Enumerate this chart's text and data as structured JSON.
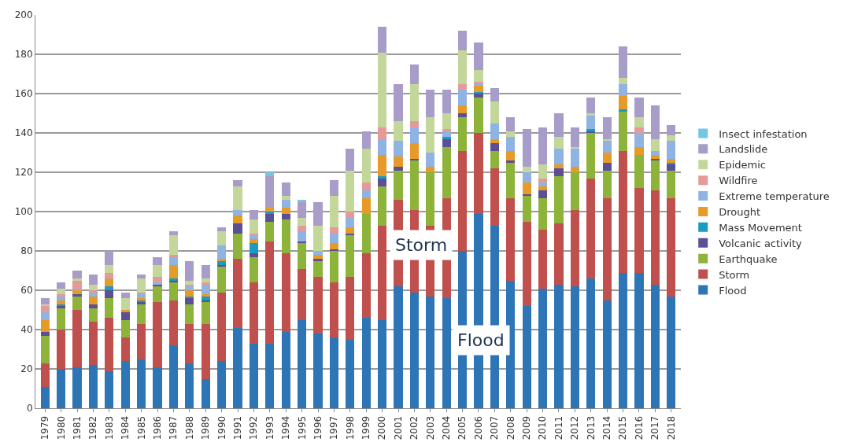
{
  "chart_data": {
    "type": "bar",
    "stacked": true,
    "grid": "y",
    "legend": "right",
    "categories": [
      "1979",
      "1980",
      "1981",
      "1982",
      "1983",
      "1984",
      "1985",
      "1986",
      "1987",
      "1988",
      "1989",
      "1990",
      "1991",
      "1992",
      "1993",
      "1994",
      "1995",
      "1996",
      "1997",
      "1998",
      "1999",
      "2000",
      "2001",
      "2002",
      "2003",
      "2004",
      "2005",
      "2006",
      "2007",
      "2008",
      "2009",
      "2010",
      "2011",
      "2012",
      "2013",
      "2014",
      "2015",
      "2016",
      "2017",
      "2018"
    ],
    "ylim": [
      0,
      200
    ],
    "yticks": [
      0,
      20,
      40,
      60,
      80,
      100,
      120,
      140,
      160,
      180,
      200
    ],
    "series": [
      {
        "name": "Flood",
        "color": "#2e75b6",
        "values": [
          11,
          20,
          21,
          22,
          19,
          24,
          25,
          21,
          32,
          23,
          15,
          24,
          41,
          33,
          33,
          39,
          45,
          38,
          36,
          35,
          46,
          45,
          62,
          59,
          57,
          56,
          80,
          99,
          93,
          65,
          52,
          61,
          63,
          62,
          66,
          55,
          69,
          69,
          63,
          57
        ]
      },
      {
        "name": "Storm",
        "color": "#c0504d",
        "values": [
          12,
          20,
          29,
          22,
          27,
          12,
          18,
          33,
          23,
          20,
          28,
          35,
          35,
          31,
          52,
          40,
          26,
          29,
          28,
          32,
          33,
          48,
          44,
          42,
          36,
          51,
          51,
          41,
          29,
          42,
          43,
          30,
          31,
          39,
          51,
          52,
          62,
          43,
          48,
          50
        ]
      },
      {
        "name": "Earthquake",
        "color": "#8db33a",
        "values": [
          14,
          11,
          7,
          7,
          10,
          9,
          10,
          8,
          9,
          10,
          11,
          13,
          13,
          13,
          10,
          17,
          13,
          8,
          16,
          21,
          20,
          20,
          15,
          25,
          27,
          26,
          17,
          18,
          9,
          18,
          13,
          16,
          24,
          19,
          23,
          14,
          20,
          17,
          15,
          14
        ]
      },
      {
        "name": "Volcanic activity",
        "color": "#5b4f96",
        "values": [
          2,
          1,
          1,
          2,
          4,
          4,
          1,
          1,
          1,
          3,
          1,
          1,
          5,
          2,
          4,
          3,
          1,
          1,
          1,
          1,
          0,
          4,
          2,
          1,
          0,
          4,
          2,
          2,
          4,
          1,
          1,
          4,
          4,
          0,
          1,
          4,
          0,
          0,
          1,
          3
        ]
      },
      {
        "name": "Mass Movement",
        "color": "#1a9bbf",
        "values": [
          0,
          1,
          0,
          0,
          2,
          0,
          1,
          0,
          1,
          1,
          2,
          2,
          0,
          5,
          1,
          0,
          0,
          0,
          0,
          0,
          0,
          1,
          0,
          0,
          0,
          1,
          0,
          1,
          0,
          0,
          0,
          0,
          0,
          0,
          1,
          0,
          1,
          0,
          0,
          1
        ]
      },
      {
        "name": "Drought",
        "color": "#e69a28",
        "values": [
          6,
          2,
          2,
          4,
          4,
          1,
          1,
          0,
          7,
          3,
          1,
          1,
          4,
          2,
          2,
          3,
          0,
          2,
          3,
          3,
          8,
          11,
          5,
          8,
          3,
          0,
          4,
          3,
          2,
          5,
          6,
          2,
          2,
          3,
          0,
          5,
          7,
          4,
          2,
          2
        ]
      },
      {
        "name": "Extreme temperature",
        "color": "#8fb4e3",
        "values": [
          4,
          2,
          1,
          2,
          1,
          0,
          2,
          1,
          4,
          2,
          5,
          7,
          3,
          2,
          0,
          4,
          5,
          2,
          5,
          5,
          4,
          8,
          8,
          8,
          7,
          3,
          8,
          1,
          8,
          7,
          5,
          2,
          8,
          9,
          7,
          6,
          6,
          7,
          2,
          9
        ]
      },
      {
        "name": "Wildfire",
        "color": "#e59a9a",
        "values": [
          3,
          1,
          4,
          1,
          2,
          0,
          1,
          3,
          1,
          1,
          1,
          0,
          0,
          1,
          0,
          0,
          3,
          0,
          3,
          3,
          4,
          6,
          0,
          3,
          0,
          1,
          3,
          1,
          0,
          0,
          0,
          2,
          0,
          0,
          0,
          0,
          0,
          3,
          0,
          0
        ]
      },
      {
        "name": "Epidemic",
        "color": "#c4d79b",
        "values": [
          1,
          3,
          1,
          3,
          4,
          6,
          7,
          6,
          10,
          2,
          2,
          7,
          12,
          7,
          0,
          2,
          4,
          13,
          16,
          21,
          17,
          38,
          10,
          19,
          18,
          8,
          17,
          6,
          11,
          3,
          3,
          7,
          6,
          1,
          1,
          1,
          3,
          5,
          6,
          3
        ]
      },
      {
        "name": "Landslide",
        "color": "#a89cc8",
        "values": [
          3,
          3,
          4,
          5,
          7,
          3,
          2,
          4,
          2,
          10,
          7,
          2,
          3,
          5,
          16,
          7,
          8,
          12,
          8,
          11,
          9,
          13,
          19,
          10,
          14,
          12,
          10,
          14,
          7,
          7,
          19,
          19,
          12,
          10,
          8,
          11,
          16,
          10,
          17,
          5
        ]
      },
      {
        "name": "Insect infestation",
        "color": "#74c7e3",
        "values": [
          0,
          0,
          0,
          0,
          0,
          0,
          0,
          0,
          0,
          0,
          0,
          0,
          0,
          0,
          2,
          0,
          1,
          0,
          0,
          0,
          0,
          0,
          0,
          0,
          0,
          0,
          0,
          0,
          0,
          0,
          0,
          0,
          0,
          0,
          0,
          0,
          0,
          0,
          0,
          0
        ]
      }
    ],
    "annotations": [
      "Storm",
      "Flood"
    ]
  }
}
